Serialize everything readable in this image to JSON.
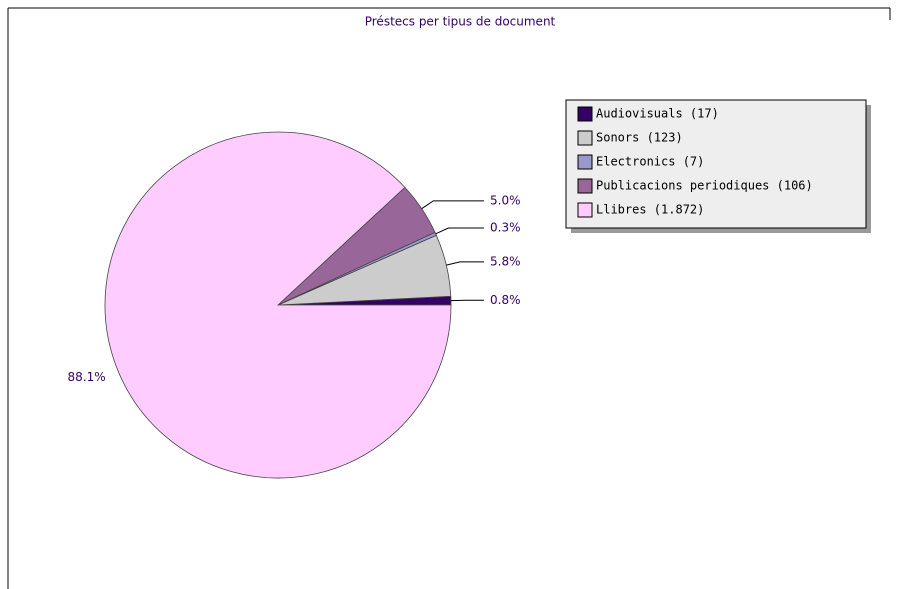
{
  "chart_data": {
    "type": "pie",
    "title": "Préstecs per tipus de document",
    "categories": [
      "Audiovisuals (17)",
      "Sonors (123)",
      "Electronics (7)",
      "Publicacions periodiques (106)",
      "Llibres (1.872)"
    ],
    "values": [
      0.8,
      5.8,
      0.3,
      5.0,
      88.1
    ],
    "value_labels": [
      "0.8%",
      "5.8%",
      "0.3%",
      "5.0%",
      "88.1%"
    ],
    "colors": [
      "#330066",
      "#cccccc",
      "#9999cc",
      "#996699",
      "#ffccff"
    ],
    "legend": "top-right"
  }
}
